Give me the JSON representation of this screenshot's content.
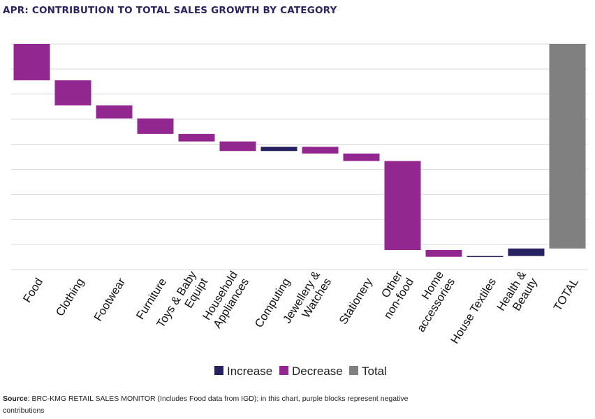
{
  "title": "APR: CONTRIBUTION TO TOTAL SALES GROWTH BY CATEGORY",
  "source": {
    "label": "Source",
    "text": ": BRC-KMG RETAIL SALES MONITOR (Includes Food data from IGD); in this chart, purple blocks represent negative contributions"
  },
  "colors": {
    "increase": "#262262",
    "decrease": "#92278f",
    "total": "#808080",
    "grid": "#d9d9d9"
  },
  "chart_data": {
    "type": "waterfall",
    "title": "APR: CONTRIBUTION TO TOTAL SALES GROWTH BY CATEGORY",
    "xlabel": "",
    "ylabel": "",
    "y_tick_labels_shown": false,
    "grid": true,
    "ylim": [
      -9,
      0
    ],
    "legend_position": "bottom",
    "legend": [
      "Increase",
      "Decrease",
      "Total"
    ],
    "categories": [
      [
        "Food"
      ],
      [
        "Clothing"
      ],
      [
        "Footwear"
      ],
      [
        "Furniture"
      ],
      [
        "Toys & Baby",
        "Equipt"
      ],
      [
        "Household",
        "Appliances"
      ],
      [
        "Computing"
      ],
      [
        "Jewellery &",
        "Watches"
      ],
      [
        "Stationery"
      ],
      [
        "Other",
        "non-food"
      ],
      [
        "Home",
        "accessories"
      ],
      [
        "House Textiles"
      ],
      [
        "Health &",
        "Beauty"
      ],
      [
        "TOTAL"
      ]
    ],
    "values": [
      -1.45,
      -1.0,
      -0.52,
      -0.62,
      -0.3,
      -0.38,
      0.17,
      -0.27,
      -0.3,
      -3.55,
      -0.27,
      0.03,
      0.3,
      -8.16
    ],
    "kinds": [
      "decrease",
      "decrease",
      "decrease",
      "decrease",
      "decrease",
      "decrease",
      "increase",
      "decrease",
      "decrease",
      "decrease",
      "decrease",
      "increase",
      "increase",
      "total"
    ]
  }
}
